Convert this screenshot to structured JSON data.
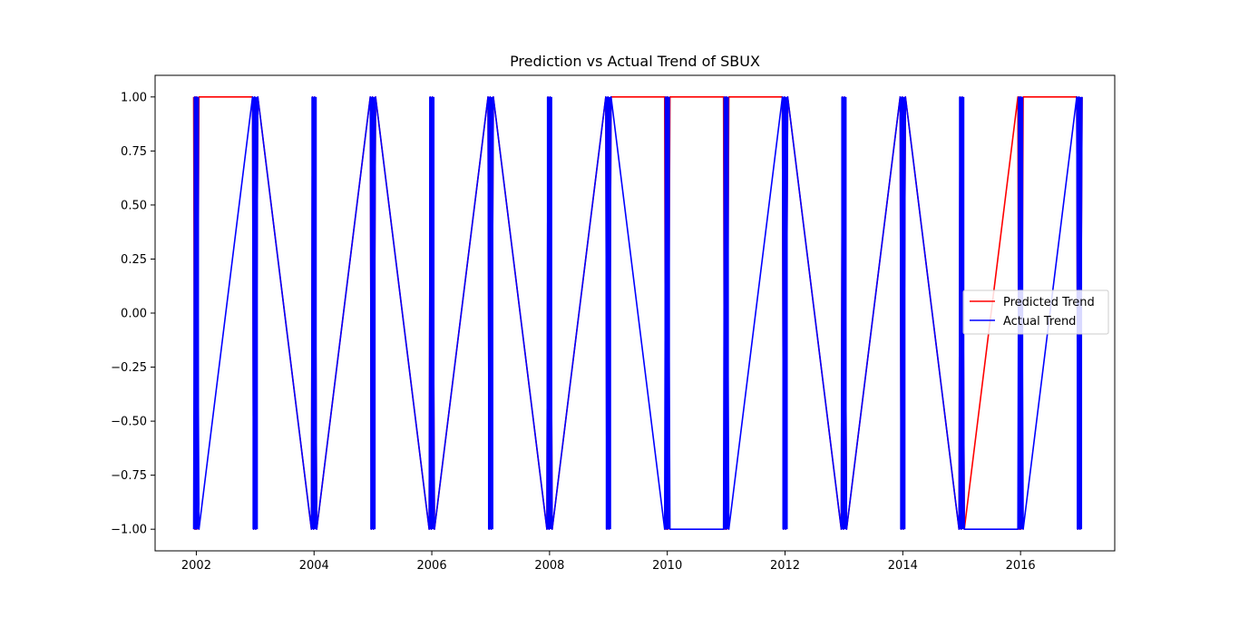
{
  "chart_data": {
    "type": "line",
    "title": "Prediction vs Actual Trend of SBUX",
    "xlabel": "",
    "ylabel": "",
    "xlim": [
      2001.3,
      2017.6
    ],
    "ylim": [
      -1.1,
      1.1
    ],
    "x_ticks": [
      2002,
      2004,
      2006,
      2008,
      2010,
      2012,
      2014,
      2016
    ],
    "x_tick_labels": [
      "2002",
      "2004",
      "2006",
      "2008",
      "2010",
      "2012",
      "2014",
      "2016"
    ],
    "y_ticks": [
      1.0,
      0.75,
      0.5,
      0.25,
      0.0,
      -0.25,
      -0.5,
      -0.75,
      -1.0
    ],
    "y_tick_labels": [
      "1.00",
      "0.75",
      "0.50",
      "0.25",
      "0.00",
      "−0.25",
      "−0.50",
      "−0.75",
      "−1.00"
    ],
    "grid": false,
    "legend_position": "center-right",
    "x": [
      2002,
      2003,
      2004,
      2005,
      2006,
      2007,
      2008,
      2009,
      2010,
      2011,
      2012,
      2013,
      2014,
      2015,
      2016,
      2017
    ],
    "series": [
      {
        "name": "Predicted Trend",
        "color": "#ff0000",
        "values": [
          1,
          1,
          -1,
          1,
          -1,
          1,
          -1,
          1,
          1,
          1,
          1,
          -1,
          1,
          -1,
          1,
          1
        ]
      },
      {
        "name": "Actual Trend",
        "color": "#0000ff",
        "values": [
          -1,
          1,
          -1,
          1,
          -1,
          1,
          -1,
          1,
          -1,
          -1,
          1,
          -1,
          1,
          -1,
          -1,
          1
        ]
      }
    ],
    "series_mid_jump": [
      {
        "from": [
          -1,
          1
        ],
        "to": [
          -1,
          1
        ]
      },
      {
        "from": [
          -1,
          1
        ],
        "to": [
          -1,
          1
        ]
      },
      {
        "from": [
          -1,
          1
        ],
        "to": [
          -1,
          1
        ]
      },
      {
        "from": [
          -1,
          1
        ],
        "to": [
          -1,
          1
        ]
      },
      {
        "from": [
          -1,
          1
        ],
        "to": [
          -1,
          1
        ]
      },
      {
        "from": [
          -1,
          1
        ],
        "to": [
          -1,
          1
        ]
      },
      {
        "from": [
          -1,
          1
        ],
        "to": [
          -1,
          1
        ]
      },
      {
        "from": [
          -1,
          1
        ],
        "to": [
          -1,
          1
        ]
      },
      {
        "from": [
          -1,
          1
        ],
        "to": [
          -1,
          1
        ]
      },
      {
        "from": [
          -1,
          1
        ],
        "to": [
          -1,
          1
        ]
      },
      {
        "from": [
          -1,
          1
        ],
        "to": [
          -1,
          1
        ]
      },
      {
        "from": [
          -1,
          1
        ],
        "to": [
          -1,
          1
        ]
      },
      {
        "from": [
          -1,
          1
        ],
        "to": [
          -1,
          1
        ]
      },
      {
        "from": [
          -1,
          1
        ],
        "to": [
          -1,
          1
        ]
      },
      {
        "from": [
          -1,
          1
        ],
        "to": [
          -1,
          1
        ]
      },
      {
        "from": [
          -1,
          1
        ],
        "to": [
          -1,
          1
        ]
      }
    ]
  }
}
